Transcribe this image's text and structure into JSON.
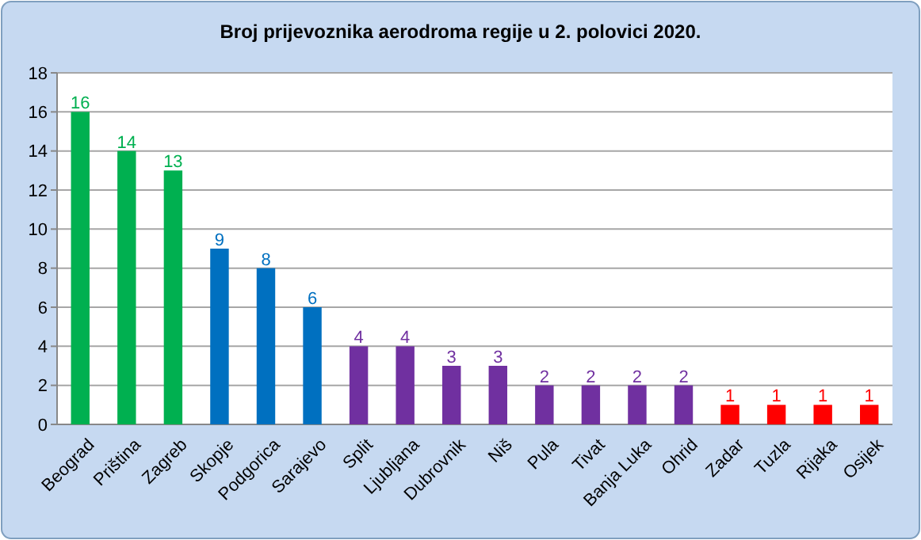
{
  "chart_data": {
    "type": "bar",
    "title": "Broj prijevoznika aerodroma regije u 2. polovici 2020.",
    "categories": [
      "Beograd",
      "Priština",
      "Zagreb",
      "Skopje",
      "Podgorica",
      "Sarajevo",
      "Split",
      "Ljubljana",
      "Dubrovnik",
      "Niš",
      "Pula",
      "Tivat",
      "Banja Luka",
      "Ohrid",
      "Zadar",
      "Tuzla",
      "Rijaka",
      "Osijek"
    ],
    "values": [
      16,
      14,
      13,
      9,
      8,
      6,
      4,
      4,
      3,
      3,
      2,
      2,
      2,
      2,
      1,
      1,
      1,
      1
    ],
    "colors": [
      "#00b050",
      "#00b050",
      "#00b050",
      "#0070c0",
      "#0070c0",
      "#0070c0",
      "#7030a0",
      "#7030a0",
      "#7030a0",
      "#7030a0",
      "#7030a0",
      "#7030a0",
      "#7030a0",
      "#7030a0",
      "#ff0000",
      "#ff0000",
      "#ff0000",
      "#ff0000"
    ],
    "ylim": [
      0,
      18
    ],
    "yticks": [
      0,
      2,
      4,
      6,
      8,
      10,
      12,
      14,
      16,
      18
    ],
    "grid": "y",
    "data_labels": true
  }
}
